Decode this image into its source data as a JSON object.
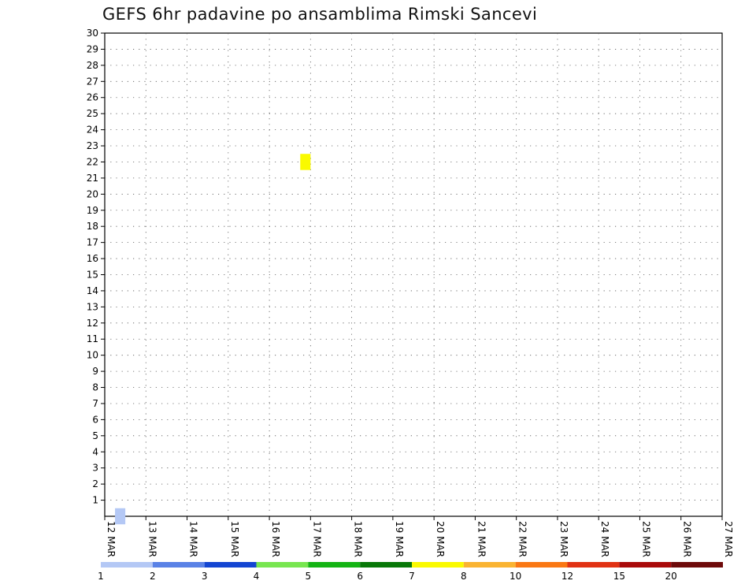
{
  "chart_data": {
    "type": "heatmap",
    "title": "GEFS 6hr padavine po ansamblima Rimski Sancevi",
    "xlabel": "",
    "ylabel": "",
    "x_ticks": [
      "12 MAR",
      "13 MAR",
      "14 MAR",
      "15 MAR",
      "16 MAR",
      "17 MAR",
      "18 MAR",
      "19 MAR",
      "20 MAR",
      "21 MAR",
      "22 MAR",
      "23 MAR",
      "24 MAR",
      "25 MAR",
      "26 MAR",
      "27 MAR"
    ],
    "y_ticks": [
      "1",
      "2",
      "3",
      "4",
      "5",
      "6",
      "7",
      "8",
      "9",
      "10",
      "11",
      "12",
      "13",
      "14",
      "15",
      "16",
      "17",
      "18",
      "19",
      "20",
      "21",
      "22",
      "23",
      "24",
      "25",
      "26",
      "27",
      "28",
      "29",
      "30"
    ],
    "xlim_days": [
      12,
      27
    ],
    "ylim_members": [
      0,
      30
    ],
    "grid": true,
    "legend": {
      "placement": "bottom",
      "labels": [
        "1",
        "2",
        "3",
        "4",
        "5",
        "6",
        "7",
        "8",
        "10",
        "12",
        "15",
        "20"
      ],
      "colors": [
        "#b4c8f5",
        "#5a82e6",
        "#1446d2",
        "#78e650",
        "#14b414",
        "#087808",
        "#fafa00",
        "#fab432",
        "#fa7814",
        "#e13214",
        "#aa0a0a",
        "#6e0a0a"
      ]
    },
    "cells_note_units": "x = forecast time in days since 12 MAR 00Z (6-hour steps), y = ensemble member, c = precipitation color class index",
    "cells": [
      {
        "x": 4.75,
        "y": 22,
        "c": 6
      },
      {
        "x": 0.25,
        "y": 0,
        "c": 0
      }
    ]
  }
}
